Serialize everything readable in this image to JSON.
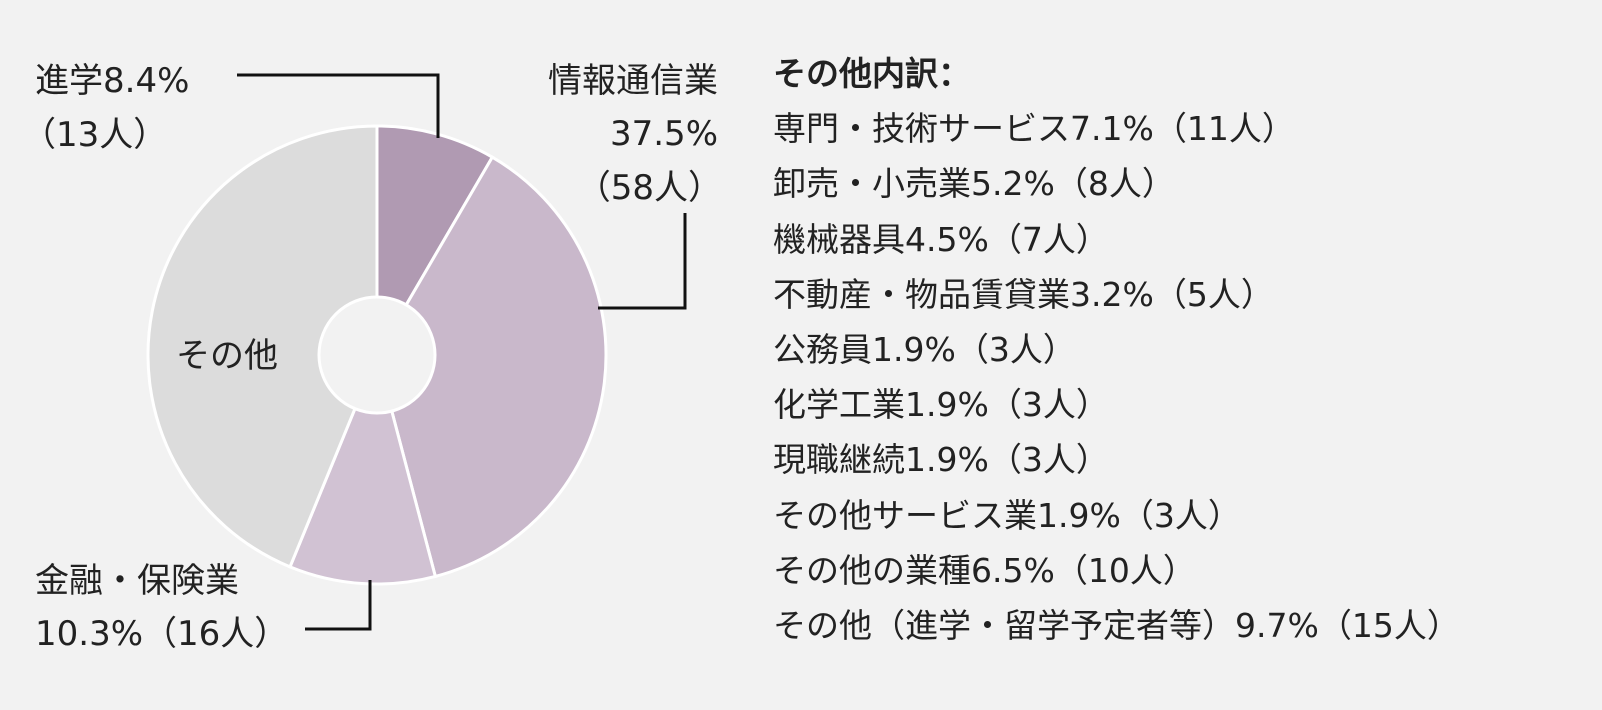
{
  "chart_data": {
    "type": "pie",
    "donut": true,
    "title": "",
    "slices": [
      {
        "name": "進学",
        "percent": 8.4,
        "count": 13,
        "color": "#b09ab2",
        "label_line1": "進学8.4%",
        "label_line2": "（13人）"
      },
      {
        "name": "情報通信業",
        "percent": 37.5,
        "count": 58,
        "color": "#c9b8cb",
        "label_line1": "情報通信業",
        "label_line2": "37.5%",
        "label_line3": "（58人）"
      },
      {
        "name": "金融・保険業",
        "percent": 10.3,
        "count": 16,
        "color": "#d1c2d3",
        "label_line1": "金融・保険業",
        "label_line2": "10.3%（16人）"
      },
      {
        "name": "その他",
        "percent": 43.8,
        "color": "#dcdcdc",
        "label_line1": "その他"
      }
    ],
    "breakdown": {
      "title": "その他内訳：",
      "items": [
        "専門・技術サービス7.1%（11人）",
        "卸売・小売業5.2%（8人）",
        "機械器具4.5%（7人）",
        "不動産・物品賃貸業3.2%（5人）",
        "公務員1.9%（3人）",
        "化学工業1.9%（3人）",
        "現職継続1.9%（3人）",
        "その他サービス業1.9%（3人）",
        "その他の業種6.5%（10人）",
        "その他（進学・留学予定者等）9.7%（15人）"
      ]
    }
  }
}
